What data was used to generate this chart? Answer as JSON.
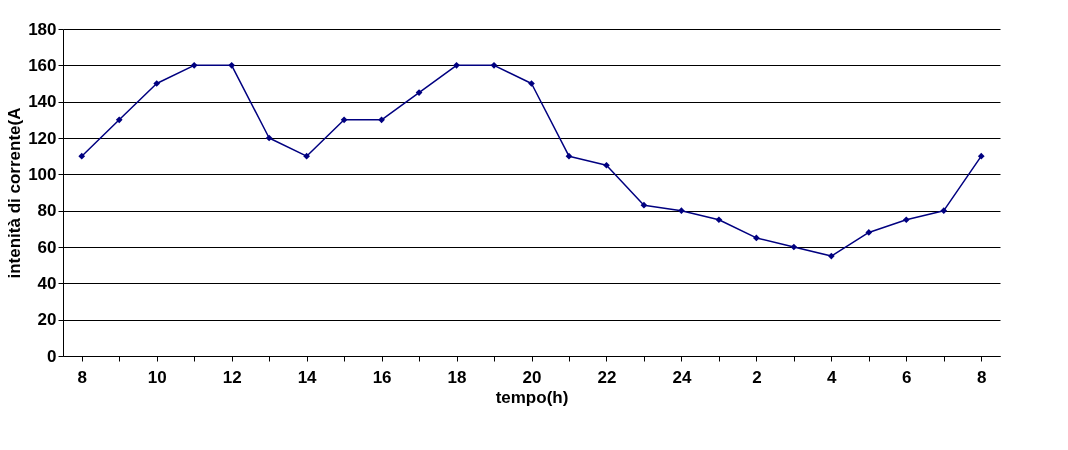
{
  "chart_data": {
    "type": "line",
    "xlabel": "tempo(h)",
    "ylabel": "intenità di corrente(A",
    "categories": [
      "8",
      null,
      "10",
      null,
      "12",
      null,
      "14",
      null,
      "16",
      null,
      "18",
      null,
      "20",
      null,
      "22",
      null,
      "24",
      null,
      "2",
      null,
      "4",
      null,
      "6",
      null,
      "8"
    ],
    "series": [
      {
        "color": "#000080",
        "values": [
          110,
          130,
          150,
          160,
          160,
          120,
          110,
          130,
          130,
          145,
          160,
          160,
          150,
          110,
          105,
          83,
          80,
          75,
          65,
          60,
          55,
          68,
          75,
          80,
          110
        ]
      }
    ],
    "ylim": [
      0,
      180
    ],
    "yticks": [
      0,
      20,
      40,
      60,
      80,
      100,
      120,
      140,
      160,
      180
    ],
    "grid": "y",
    "marker": "diamond",
    "line_style": "solid",
    "legend": false
  }
}
